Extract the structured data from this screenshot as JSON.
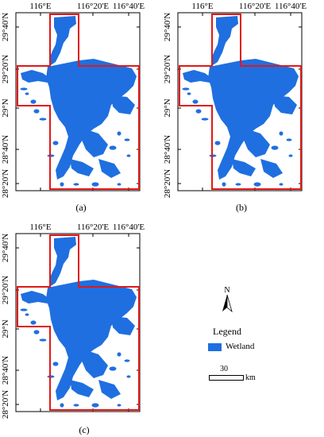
{
  "lon_labels": [
    "116°E",
    "116°20'E",
    "116°40'E"
  ],
  "lat_labels": [
    "29°40'N",
    "29°20'N",
    "29°N",
    "28°40'N",
    "28°20'N"
  ],
  "panels": [
    {
      "caption": "(a)"
    },
    {
      "caption": "(b)"
    },
    {
      "caption": "(c)"
    }
  ],
  "legend": {
    "title": "Legend",
    "items": [
      {
        "label": "Wetland",
        "color": "#1f6fe0"
      }
    ]
  },
  "north_arrow": {
    "label": "N"
  },
  "scale_bar": {
    "value": "30",
    "unit": "km"
  },
  "colors": {
    "wetland": "#1f6fe0",
    "boundary": "#e01818",
    "frame": "#000000"
  }
}
